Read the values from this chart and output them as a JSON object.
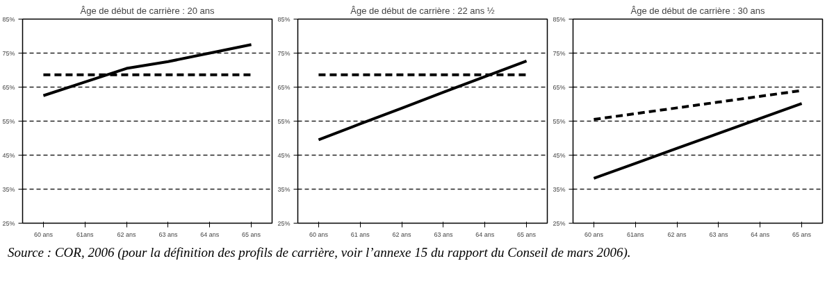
{
  "chart_data": [
    {
      "type": "line",
      "title": "Âge de début de carrière : 20 ans",
      "categories": [
        "60 ans",
        "61ans",
        "62 ans",
        "63 ans",
        "64 ans",
        "65 ans"
      ],
      "ylim": [
        25,
        85
      ],
      "yticks": [
        {
          "value": 25,
          "label": "25%"
        },
        {
          "value": 35,
          "label": "35%"
        },
        {
          "value": 45,
          "label": "45%"
        },
        {
          "value": 55,
          "label": "55%"
        },
        {
          "value": 65,
          "label": "65%"
        },
        {
          "value": 75,
          "label": "75%"
        },
        {
          "value": 85,
          "label": "85%"
        }
      ],
      "grid": "y",
      "series": [
        {
          "color": "#000000",
          "line_style": "solid",
          "values": [
            62.5,
            66.5,
            70.5,
            72.5,
            75,
            77.5
          ]
        },
        {
          "color": "#000000",
          "line_style": "dashed",
          "values": [
            68.6,
            68.6,
            68.6,
            68.6,
            68.6,
            68.6
          ]
        }
      ],
      "annotations": [
        "Source : COR, 2006 (pour la définition des profils de carrière, voir l’annexe 15 du rapport du Conseil de mars 2006)."
      ]
    },
    {
      "type": "line",
      "title": "Âge de début de carrière : 22 ans ½",
      "categories": [
        "60 ans",
        "61 ans",
        "62 ans",
        "63 ans",
        "64 ans",
        "65 ans"
      ],
      "ylim": [
        25,
        85
      ],
      "yticks": [
        {
          "value": 25,
          "label": "25%"
        },
        {
          "value": 35,
          "label": "35%"
        },
        {
          "value": 45,
          "label": "45%"
        },
        {
          "value": 55,
          "label": "55%"
        },
        {
          "value": 65,
          "label": "65%"
        },
        {
          "value": 75,
          "label": "75%"
        },
        {
          "value": 85,
          "label": "85%"
        }
      ],
      "grid": "y",
      "series": [
        {
          "color": "#000000",
          "line_style": "solid",
          "values": [
            49.5,
            54.2,
            58.8,
            63.5,
            68.1,
            72.7
          ]
        },
        {
          "color": "#000000",
          "line_style": "dashed",
          "values": [
            68.6,
            68.6,
            68.6,
            68.6,
            68.6,
            68.6
          ]
        }
      ]
    },
    {
      "type": "line",
      "title": "Âge de début de carrière : 30 ans",
      "categories": [
        "60 ans",
        "61ans",
        "62 ans",
        "63 ans",
        "64 ans",
        "65 ans"
      ],
      "ylim": [
        25,
        85
      ],
      "yticks": [
        {
          "value": 25,
          "label": "25%"
        },
        {
          "value": 35,
          "label": "35%"
        },
        {
          "value": 45,
          "label": "45%"
        },
        {
          "value": 55,
          "label": "55%"
        },
        {
          "value": 65,
          "label": "65%"
        },
        {
          "value": 75,
          "label": "75%"
        },
        {
          "value": 85,
          "label": "85%"
        }
      ],
      "grid": "y",
      "series": [
        {
          "color": "#000000",
          "line_style": "solid",
          "values": [
            38.2,
            42.6,
            47,
            51.4,
            55.8,
            60.2
          ]
        },
        {
          "color": "#000000",
          "line_style": "dashed",
          "values": [
            55.5,
            57.2,
            58.9,
            60.6,
            62.3,
            64
          ]
        }
      ]
    }
  ]
}
